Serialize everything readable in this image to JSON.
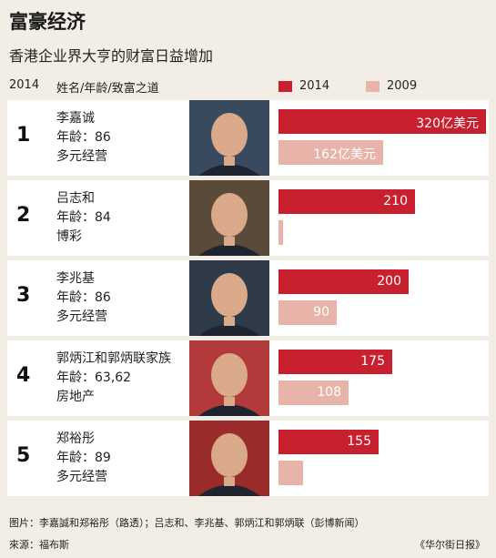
{
  "title": "富豪经济",
  "subtitle": "香港企业界大亨的财富日益增加",
  "header": {
    "year": "2014",
    "columns": "姓名/年龄/致富之道"
  },
  "legend": [
    {
      "label": "2014",
      "color": "#c8202f"
    },
    {
      "label": "2009",
      "color": "#e8b3a9"
    }
  ],
  "chart_data": {
    "type": "bar",
    "orientation": "horizontal",
    "title": "香港企业界大亨的财富日益增加",
    "categories": [
      "李嘉诚",
      "吕志和",
      "李兆基",
      "郭炳江和郭炳联家族",
      "郑裕彤"
    ],
    "series": [
      {
        "name": "2014",
        "values": [
          320,
          210,
          200,
          175,
          155
        ]
      },
      {
        "name": "2009",
        "values": [
          162,
          7,
          90,
          108,
          38
        ]
      }
    ],
    "value_labels_2014": [
      "320亿美元",
      "210",
      "200",
      "175",
      "155"
    ],
    "value_labels_2009": [
      "162亿美元",
      "7",
      "90",
      "108",
      "38"
    ],
    "xlim": [
      0,
      320
    ],
    "legend_position": "top",
    "grid": false
  },
  "people": [
    {
      "rank": "1",
      "name": "李嘉诚",
      "age": "年龄：86",
      "business": "多元经营"
    },
    {
      "rank": "2",
      "name": "吕志和",
      "age": "年龄：84",
      "business": "博彩"
    },
    {
      "rank": "3",
      "name": "李兆基",
      "age": "年龄：86",
      "business": "多元经营"
    },
    {
      "rank": "4",
      "name": "郭炳江和郭炳联家族",
      "age": "年龄：63,62",
      "business": "房地产"
    },
    {
      "rank": "5",
      "name": "郑裕彤",
      "age": "年龄：89",
      "business": "多元经营"
    }
  ],
  "footer": {
    "photo_credit": "图片：李嘉誠和郑裕彤（路透）；吕志和、李兆基、郭炳江和郭炳联（彭博新闻）",
    "source": "來源：福布斯",
    "publisher": "《华尔街日报》"
  }
}
